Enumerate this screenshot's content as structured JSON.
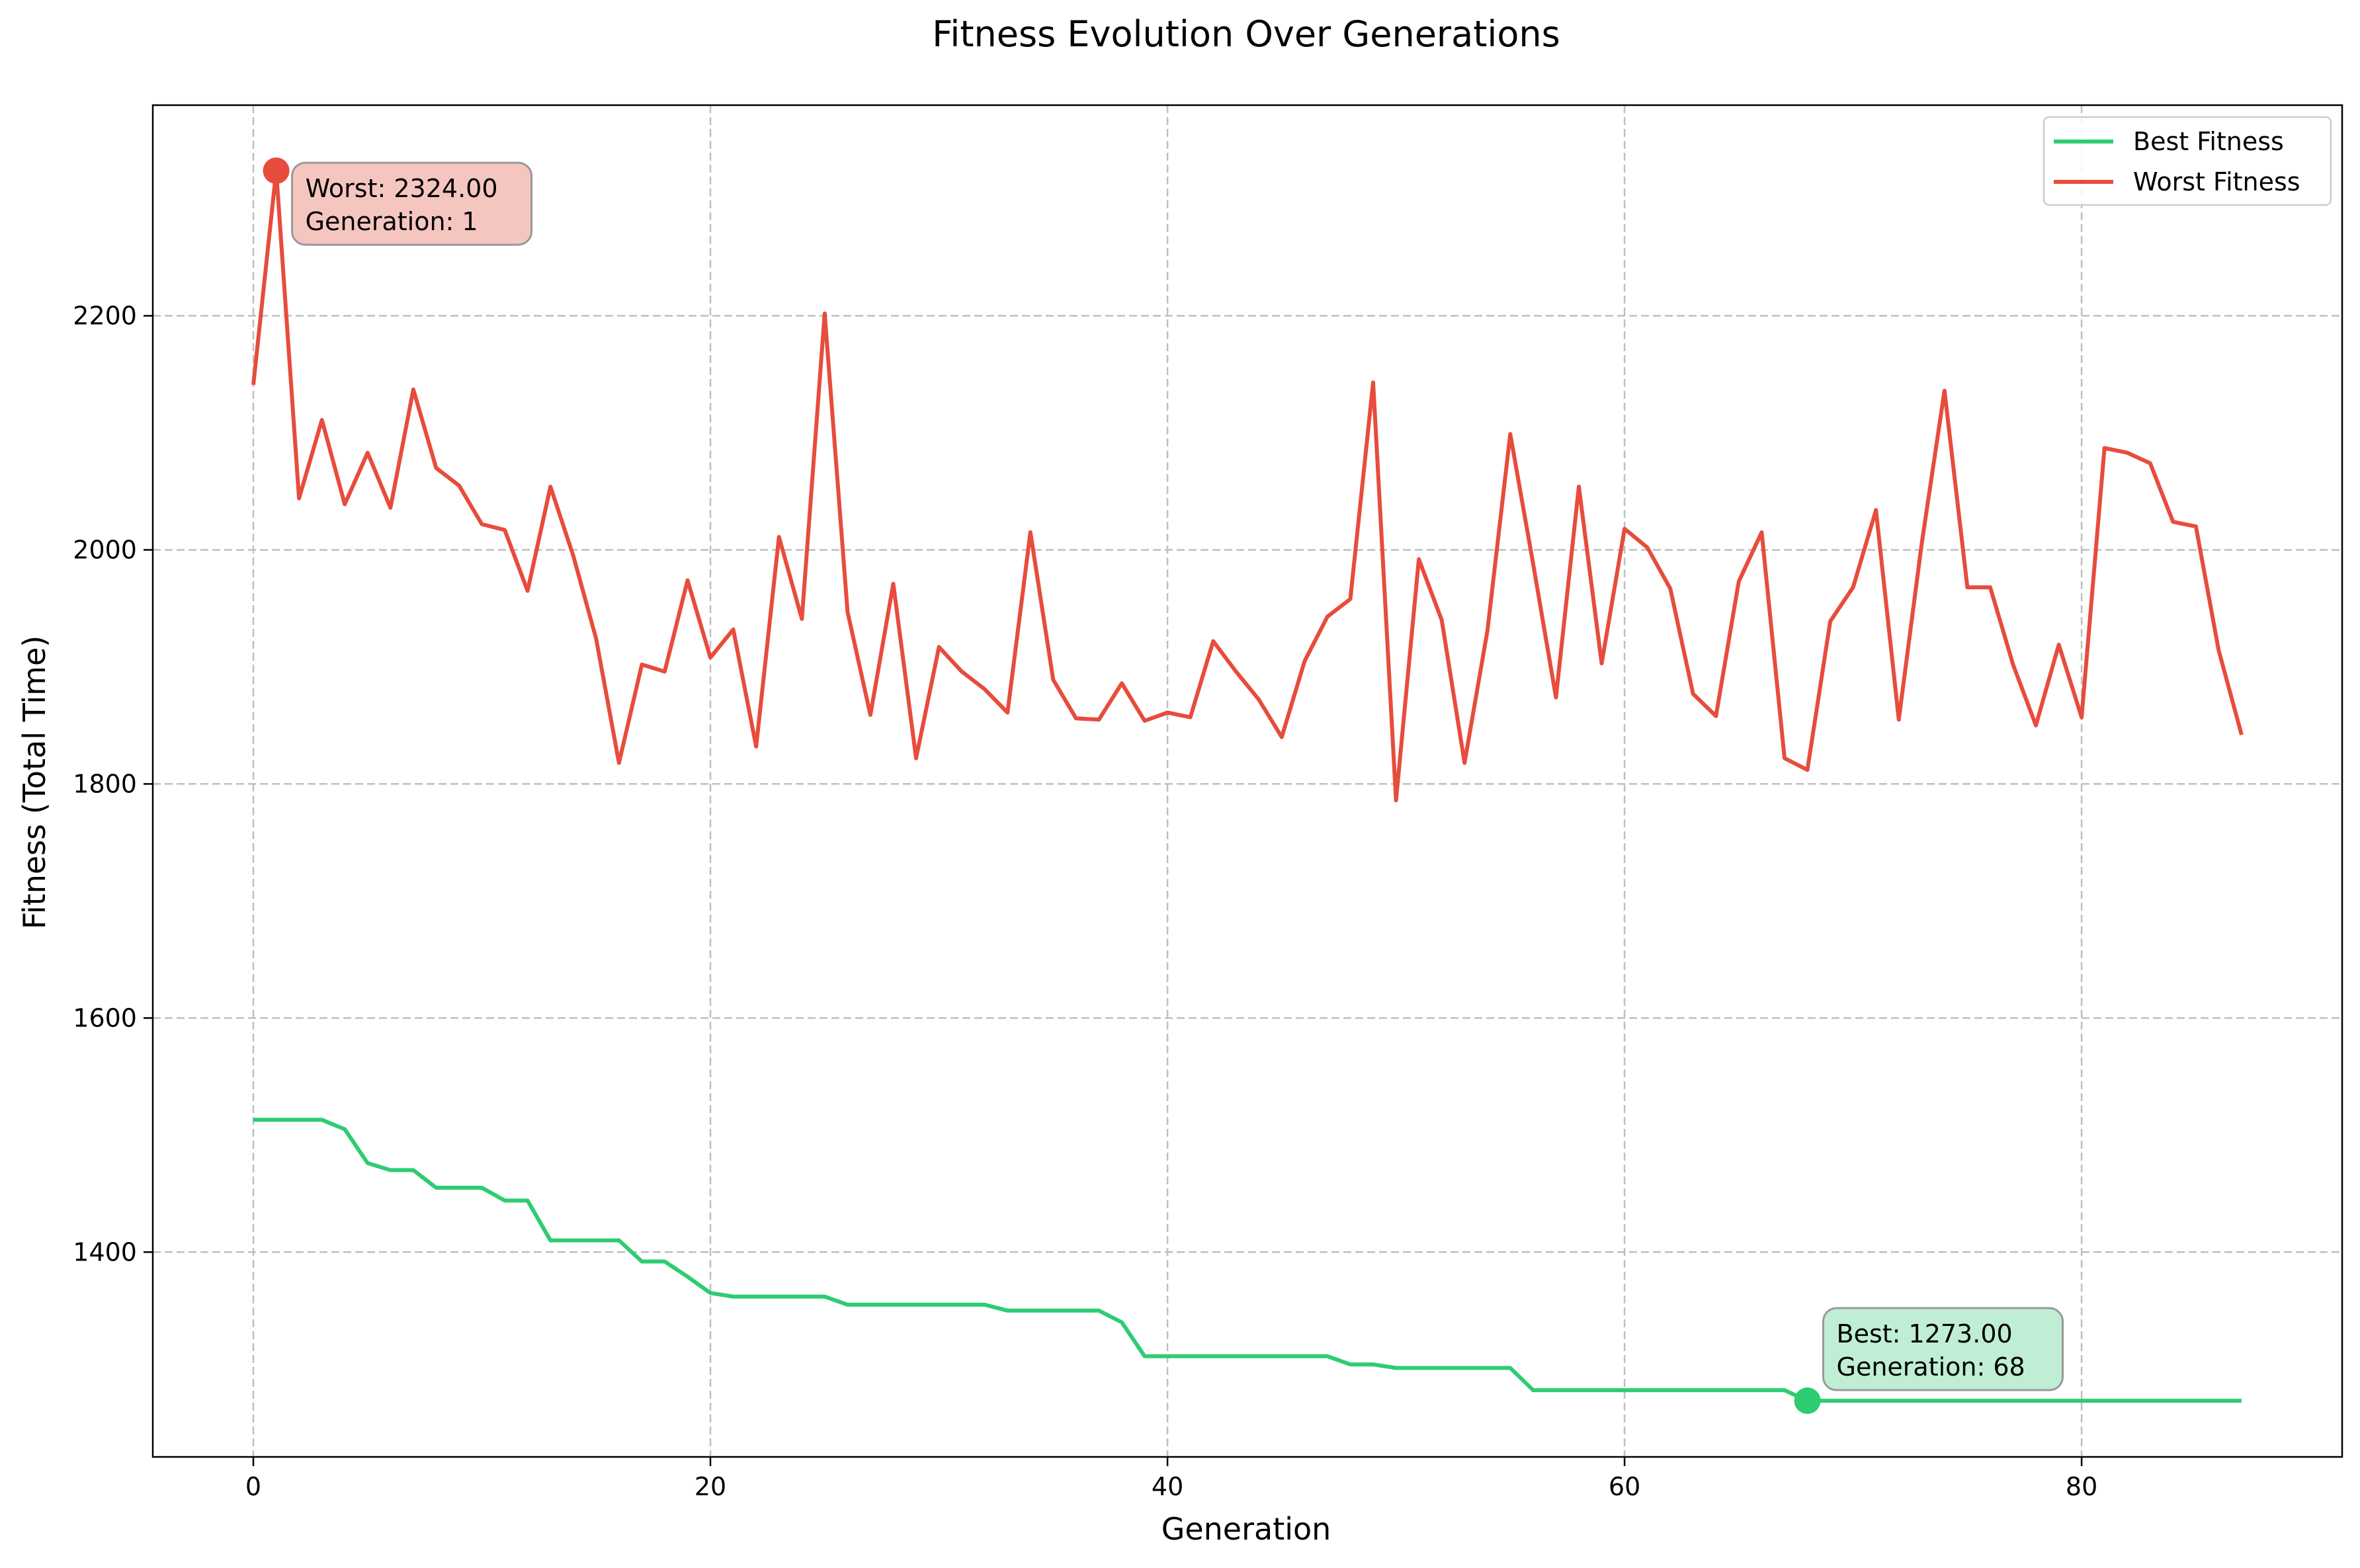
{
  "chart_data": {
    "type": "line",
    "title": "Fitness Evolution Over Generations",
    "xlabel": "Generation",
    "ylabel": "Fitness (Total Time)",
    "xlim": [
      -4.4,
      91.4
    ],
    "ylim": [
      1225,
      2380
    ],
    "x_ticks": [
      0,
      20,
      40,
      60,
      80
    ],
    "y_ticks": [
      1400,
      1600,
      1800,
      2000,
      2200
    ],
    "grid": true,
    "legend_position": "top-right",
    "colors": {
      "best": "#2ecc71",
      "worst": "#e74c3c"
    },
    "series": [
      {
        "name": "Best Fitness",
        "color": "#2ecc71",
        "x_start": 0,
        "values": [
          1513,
          1513,
          1513,
          1513,
          1505,
          1476,
          1470,
          1470,
          1455,
          1455,
          1455,
          1444,
          1444,
          1410,
          1410,
          1410,
          1410,
          1392,
          1392,
          1379,
          1365,
          1362,
          1362,
          1362,
          1362,
          1362,
          1355,
          1355,
          1355,
          1355,
          1355,
          1355,
          1355,
          1350,
          1350,
          1350,
          1350,
          1350,
          1340,
          1311,
          1311,
          1311,
          1311,
          1311,
          1311,
          1311,
          1311,
          1311,
          1304,
          1304,
          1301,
          1301,
          1301,
          1301,
          1301,
          1301,
          1282,
          1282,
          1282,
          1282,
          1282,
          1282,
          1282,
          1282,
          1282,
          1282,
          1282,
          1282,
          1273,
          1273,
          1273,
          1273,
          1273,
          1273,
          1273,
          1273,
          1273,
          1273,
          1273,
          1273,
          1273,
          1273,
          1273,
          1273,
          1273,
          1273,
          1273,
          1273
        ]
      },
      {
        "name": "Worst Fitness",
        "color": "#e74c3c",
        "x_start": 0,
        "values": [
          2141,
          2324,
          2044,
          2111,
          2039,
          2083,
          2036,
          2137,
          2070,
          2055,
          2022,
          2017,
          1965,
          2054,
          1995,
          1924,
          1818,
          1902,
          1896,
          1974,
          1908,
          1932,
          1832,
          2011,
          1941,
          2202,
          1947,
          1859,
          1971,
          1822,
          1917,
          1896,
          1881,
          1861,
          2015,
          1889,
          1856,
          1855,
          1886,
          1854,
          1861,
          1857,
          1922,
          1896,
          1872,
          1840,
          1905,
          1943,
          1958,
          2143,
          1786,
          1992,
          1940,
          1818,
          1931,
          2099,
          1988,
          1874,
          2054,
          1903,
          2018,
          2002,
          1967,
          1877,
          1858,
          1973,
          2015,
          1822,
          1812,
          1939,
          1968,
          2034,
          1855,
          2005,
          2136,
          1968,
          1968,
          1902,
          1850,
          1919,
          1857,
          2087,
          2083,
          2074,
          2024,
          2020,
          1914,
          1842
        ]
      }
    ],
    "annotations": [
      {
        "series": "Worst Fitness",
        "x": 1,
        "y": 2324,
        "line1": "Worst: 2324.00",
        "line2": "Generation: 1",
        "fill": "#f5c6c0"
      },
      {
        "series": "Best Fitness",
        "x": 68,
        "y": 1273,
        "line1": "Best: 1273.00",
        "line2": "Generation: 68",
        "fill": "#bfeed4"
      }
    ]
  }
}
